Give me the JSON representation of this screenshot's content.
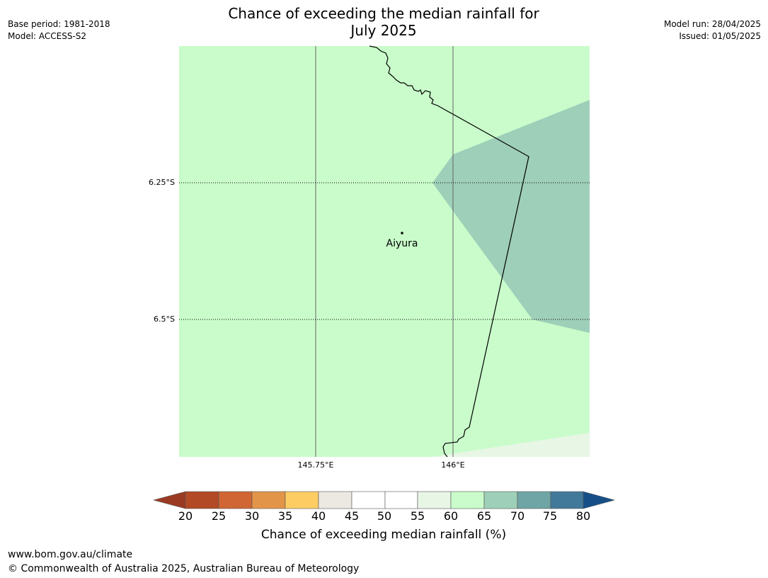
{
  "title_line1": "Chance of exceeding the median rainfall for",
  "title_line2": "July 2025",
  "info_left": {
    "base_period": "Base period: 1981-2018",
    "model": "Model: ACCESS-S2"
  },
  "info_right": {
    "model_run": "Model run: 28/04/2025",
    "issued": "Issued: 01/05/2025"
  },
  "map": {
    "background_category": "60-65",
    "latitude_labels": [
      "6.25°S",
      "6.5°S"
    ],
    "longitude_labels": [
      "145.75°E",
      "146°E"
    ],
    "place": {
      "name": "Aiyura"
    }
  },
  "colorbar": {
    "ticks": [
      "20",
      "25",
      "30",
      "35",
      "40",
      "45",
      "50",
      "55",
      "60",
      "65",
      "70",
      "75",
      "80"
    ],
    "colors": {
      "below_20": "#9a3a22",
      "20_25": "#b34a26",
      "25_30": "#cf6634",
      "30_35": "#e29548",
      "35_40": "#fdcd64",
      "40_45": "#ece9e3",
      "45_50": "#ffffff",
      "50_55": "#ffffff",
      "55_60": "#e8f6e6",
      "60_65": "#c9fcca",
      "65_70": "#9ecfb9",
      "70_75": "#6fa5a5",
      "75_80": "#41799a",
      "above_80": "#164f88"
    },
    "label": "Chance of exceeding median rainfall (%)"
  },
  "footer": {
    "url": "www.bom.gov.au/climate",
    "copyright": "© Commonwealth of Australia 2025, Australian Bureau of Meteorology"
  }
}
